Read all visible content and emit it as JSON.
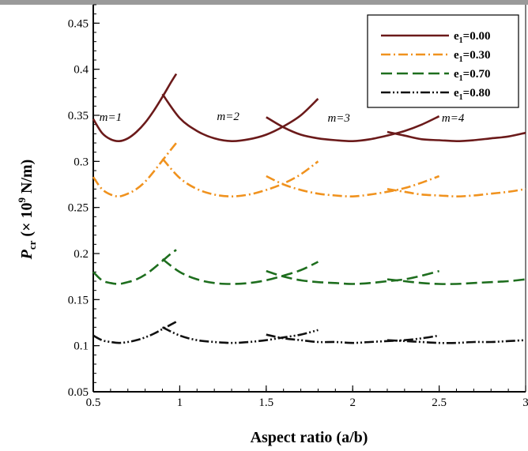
{
  "chart_data": {
    "type": "line",
    "xlabel": "Aspect ratio (a/b)",
    "ylabel_main": "P",
    "ylabel_sub": "cr",
    "ylabel_rest": " (× 10",
    "ylabel_exp": "9",
    "ylabel_unit": " N/m)",
    "xlim": [
      0.5,
      3.0
    ],
    "ylim": [
      0.05,
      0.47
    ],
    "x_ticks": [
      "0.5",
      "1",
      "1.5",
      "2",
      "2.5",
      "3"
    ],
    "x_tick_values": [
      0.5,
      1.0,
      1.5,
      2.0,
      2.5,
      3.0
    ],
    "y_ticks": [
      "0.05",
      "0.1",
      "0.15",
      "0.2",
      "0.25",
      "0.3",
      "0.35",
      "0.4",
      "0.45"
    ],
    "y_tick_values": [
      0.05,
      0.1,
      0.15,
      0.2,
      0.25,
      0.3,
      0.35,
      0.4,
      0.45
    ],
    "grid": false,
    "legend_position": "top-right",
    "mode_labels": [
      {
        "text": "m=1",
        "x": 0.6,
        "y": 0.344
      },
      {
        "text": "m=2",
        "x": 1.28,
        "y": 0.345
      },
      {
        "text": "m=3",
        "x": 1.92,
        "y": 0.343
      },
      {
        "text": "m=4",
        "x": 2.58,
        "y": 0.343
      }
    ],
    "series": [
      {
        "name_main": "e",
        "name_sub": "1",
        "name_rest": "=0.00",
        "color": "#6b1a1a",
        "dash": "",
        "modes": [
          {
            "x": [
              0.5,
              0.55,
              0.6,
              0.65,
              0.7,
              0.75,
              0.8,
              0.85,
              0.9,
              0.95,
              0.98
            ],
            "y": [
              0.346,
              0.331,
              0.324,
              0.322,
              0.325,
              0.332,
              0.342,
              0.355,
              0.37,
              0.386,
              0.395
            ]
          },
          {
            "x": [
              0.9,
              1.0,
              1.1,
              1.2,
              1.3,
              1.4,
              1.5,
              1.6,
              1.7,
              1.8
            ],
            "y": [
              0.373,
              0.347,
              0.333,
              0.325,
              0.322,
              0.324,
              0.329,
              0.338,
              0.35,
              0.368
            ]
          },
          {
            "x": [
              1.5,
              1.6,
              1.7,
              1.8,
              1.9,
              2.0,
              2.1,
              2.2,
              2.3,
              2.4,
              2.5
            ],
            "y": [
              0.348,
              0.337,
              0.329,
              0.325,
              0.323,
              0.322,
              0.324,
              0.328,
              0.333,
              0.34,
              0.349
            ]
          },
          {
            "x": [
              2.2,
              2.3,
              2.4,
              2.5,
              2.6,
              2.7,
              2.8,
              2.9,
              3.0
            ],
            "y": [
              0.332,
              0.328,
              0.324,
              0.323,
              0.322,
              0.323,
              0.325,
              0.327,
              0.331
            ]
          }
        ]
      },
      {
        "name_main": "e",
        "name_sub": "1",
        "name_rest": "=0.30",
        "color": "#f0921e",
        "dash": "12 4 2 4",
        "modes": [
          {
            "x": [
              0.5,
              0.55,
              0.6,
              0.65,
              0.7,
              0.75,
              0.8,
              0.85,
              0.9,
              0.95,
              0.98
            ],
            "y": [
              0.283,
              0.27,
              0.264,
              0.262,
              0.265,
              0.27,
              0.278,
              0.289,
              0.301,
              0.313,
              0.32
            ]
          },
          {
            "x": [
              0.9,
              1.0,
              1.1,
              1.2,
              1.3,
              1.4,
              1.5,
              1.6,
              1.7,
              1.8
            ],
            "y": [
              0.303,
              0.282,
              0.27,
              0.264,
              0.262,
              0.264,
              0.269,
              0.276,
              0.286,
              0.3
            ]
          },
          {
            "x": [
              1.5,
              1.6,
              1.7,
              1.8,
              1.9,
              2.0,
              2.1,
              2.2,
              2.3,
              2.4,
              2.5
            ],
            "y": [
              0.284,
              0.275,
              0.269,
              0.265,
              0.263,
              0.262,
              0.264,
              0.267,
              0.271,
              0.277,
              0.284
            ]
          },
          {
            "x": [
              2.2,
              2.3,
              2.4,
              2.5,
              2.6,
              2.7,
              2.8,
              2.9,
              3.0
            ],
            "y": [
              0.27,
              0.267,
              0.264,
              0.263,
              0.262,
              0.263,
              0.265,
              0.267,
              0.27
            ]
          }
        ]
      },
      {
        "name_main": "e",
        "name_sub": "1",
        "name_rest": "=0.70",
        "color": "#1e6e1e",
        "dash": "14 6",
        "modes": [
          {
            "x": [
              0.5,
              0.55,
              0.6,
              0.65,
              0.7,
              0.75,
              0.8,
              0.85,
              0.9,
              0.95,
              0.98
            ],
            "y": [
              0.18,
              0.171,
              0.168,
              0.167,
              0.169,
              0.172,
              0.177,
              0.184,
              0.192,
              0.2,
              0.204
            ]
          },
          {
            "x": [
              0.9,
              1.0,
              1.1,
              1.2,
              1.3,
              1.4,
              1.5,
              1.6,
              1.7,
              1.8
            ],
            "y": [
              0.194,
              0.18,
              0.172,
              0.168,
              0.167,
              0.168,
              0.171,
              0.176,
              0.182,
              0.191
            ]
          },
          {
            "x": [
              1.5,
              1.6,
              1.7,
              1.8,
              1.9,
              2.0,
              2.1,
              2.2,
              2.3,
              2.4,
              2.5
            ],
            "y": [
              0.181,
              0.175,
              0.171,
              0.169,
              0.168,
              0.167,
              0.168,
              0.17,
              0.172,
              0.176,
              0.181
            ]
          },
          {
            "x": [
              2.2,
              2.3,
              2.4,
              2.5,
              2.6,
              2.7,
              2.8,
              2.9,
              3.0
            ],
            "y": [
              0.172,
              0.17,
              0.168,
              0.167,
              0.167,
              0.168,
              0.169,
              0.17,
              0.172
            ]
          }
        ]
      },
      {
        "name_main": "e",
        "name_sub": "1",
        "name_rest": "=0.80",
        "color": "#111111",
        "dash": "12 3 2 3 2 3",
        "modes": [
          {
            "x": [
              0.5,
              0.55,
              0.6,
              0.65,
              0.7,
              0.75,
              0.8,
              0.85,
              0.9,
              0.95,
              0.98
            ],
            "y": [
              0.111,
              0.106,
              0.104,
              0.103,
              0.104,
              0.106,
              0.109,
              0.113,
              0.118,
              0.123,
              0.126
            ]
          },
          {
            "x": [
              0.9,
              1.0,
              1.1,
              1.2,
              1.3,
              1.4,
              1.5,
              1.6,
              1.7,
              1.8
            ],
            "y": [
              0.12,
              0.111,
              0.106,
              0.104,
              0.103,
              0.104,
              0.106,
              0.109,
              0.112,
              0.117
            ]
          },
          {
            "x": [
              1.5,
              1.6,
              1.7,
              1.8,
              1.9,
              2.0,
              2.1,
              2.2,
              2.3,
              2.4,
              2.5
            ],
            "y": [
              0.112,
              0.108,
              0.106,
              0.104,
              0.104,
              0.103,
              0.104,
              0.105,
              0.106,
              0.108,
              0.111
            ]
          },
          {
            "x": [
              2.2,
              2.3,
              2.4,
              2.5,
              2.6,
              2.7,
              2.8,
              2.9,
              3.0
            ],
            "y": [
              0.106,
              0.105,
              0.104,
              0.103,
              0.103,
              0.104,
              0.104,
              0.105,
              0.106
            ]
          }
        ]
      }
    ]
  }
}
